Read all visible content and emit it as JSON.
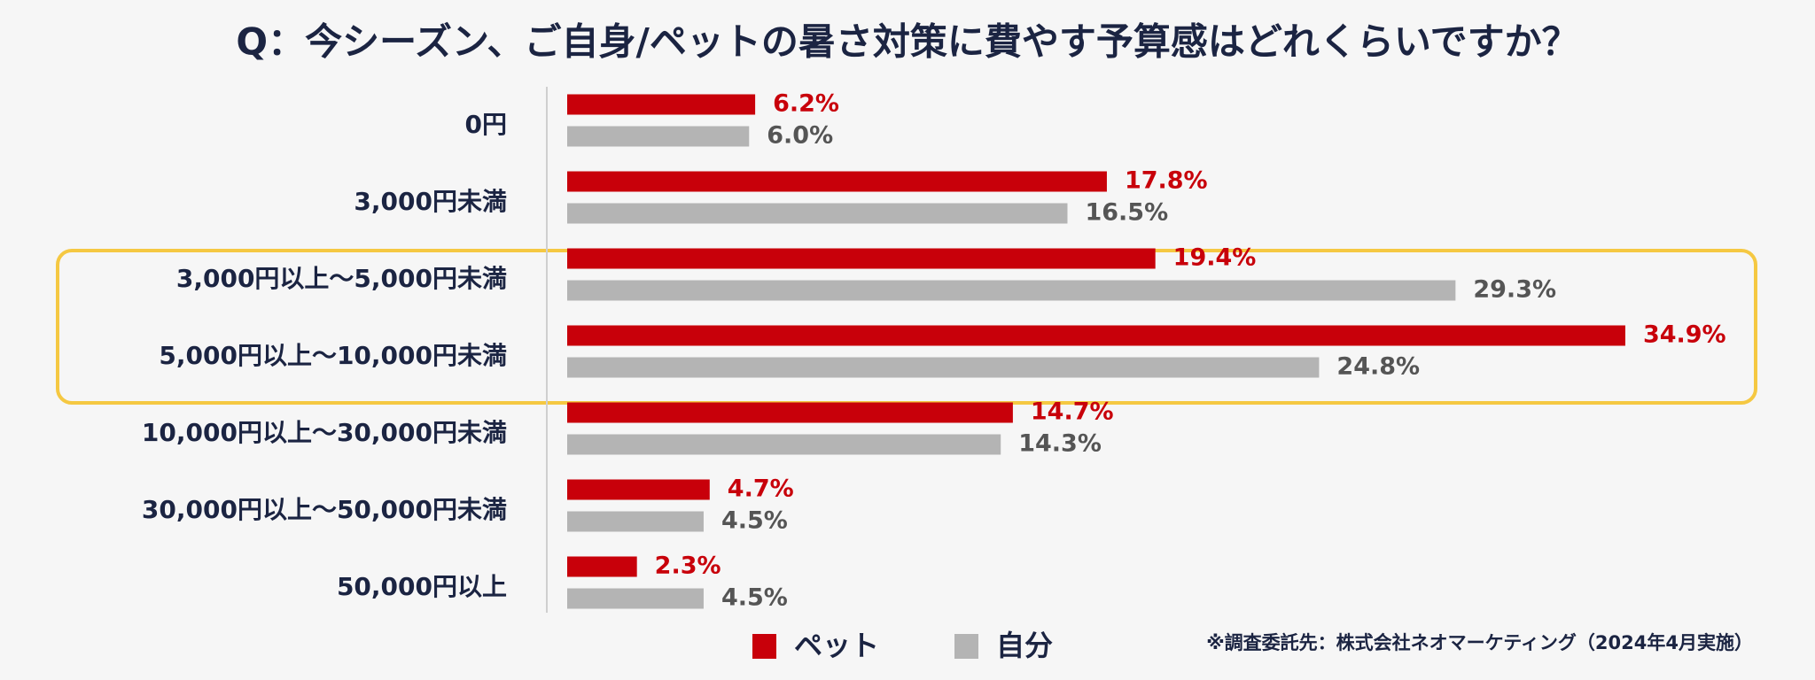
{
  "chart_data": {
    "type": "bar",
    "orientation": "horizontal",
    "title": "Q：今シーズン、ご自身/ペットの暑さ対策に費やす予算感はどれくらいですか？",
    "categories": [
      "0円",
      "3,000円未満",
      "3,000円以上〜5,000円未満",
      "5,000円以上〜10,000円未満",
      "10,000円以上〜30,000円未満",
      "30,000円以上〜50,000円未満",
      "50,000円以上"
    ],
    "series": [
      {
        "name": "ペット",
        "color": "#c8000a",
        "label_color": "#c8000a",
        "values": [
          6.2,
          17.8,
          19.4,
          34.9,
          14.7,
          4.7,
          2.3
        ],
        "value_labels": [
          "6.2%",
          "17.8%",
          "19.4%",
          "34.9%",
          "14.7%",
          "4.7%",
          "2.3%"
        ]
      },
      {
        "name": "自分",
        "color": "#b4b4b4",
        "label_color": "#555555",
        "values": [
          6.0,
          16.5,
          29.3,
          24.8,
          14.3,
          4.5,
          4.5
        ],
        "value_labels": [
          "6.0%",
          "16.5%",
          "29.3%",
          "24.8%",
          "14.3%",
          "4.5%",
          "4.5%"
        ]
      }
    ],
    "xlim": [
      0,
      38
    ],
    "source": "※調査委託先：株式会社ネオマーケティング（2024年4月実施）"
  }
}
